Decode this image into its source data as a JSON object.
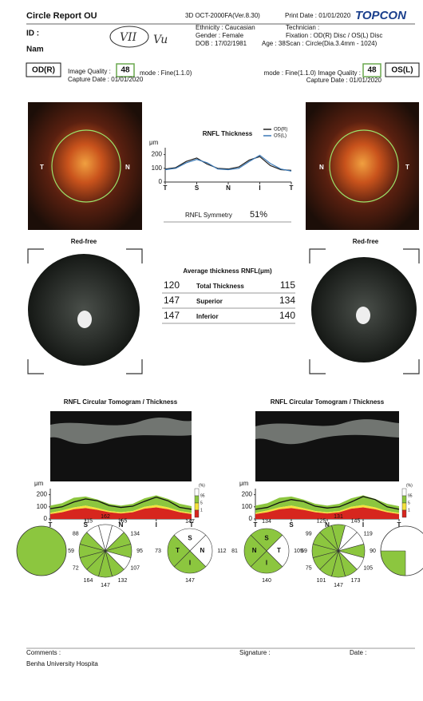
{
  "header": {
    "title": "Circle Report OU",
    "device": "3D OCT-2000FA(Ver.8.30)",
    "print_date": "Print Date : 01/01/2020",
    "brand": "TOPCON",
    "id": "ID :",
    "name": "Nam",
    "handwriting": [
      "VII",
      "Vu"
    ],
    "ethnicity": "Ethnicity : Caucasian",
    "gender": "Gender : Female",
    "dob": "DOB : 17/02/1981",
    "age": "Age : 38",
    "technician": "Technician :",
    "fixation": "Fixation : OD(R) Disc / OS(L) Disc",
    "scan": "Scan : Circle(Dia.3.4mm - 1024)"
  },
  "eyes": [
    {
      "label": "OD(R)",
      "image_quality_label": "Image Quality :",
      "image_quality": 48,
      "mode": "mode : Fine(1.1.0)",
      "capture_date": "Capture Date : 01/01/2020",
      "fundus_labels": [
        "T",
        "N"
      ],
      "red_free": "Red-free",
      "clock": [
        {
          "value": 162,
          "color": "#ffffff"
        },
        {
          "value": 165,
          "color": "#ffffff"
        },
        {
          "value": 134,
          "color": "#8cc63f"
        },
        {
          "value": 95,
          "color": "#8cc63f"
        },
        {
          "value": 107,
          "color": "#ffffff"
        },
        {
          "value": 132,
          "color": "#8cc63f"
        },
        {
          "value": 147,
          "color": "#8cc63f"
        },
        {
          "value": 164,
          "color": "#8cc63f"
        },
        {
          "value": 72,
          "color": "#8cc63f"
        },
        {
          "value": 59,
          "color": "#8cc63f"
        },
        {
          "value": 88,
          "color": "#8cc63f"
        },
        {
          "value": 115,
          "color": "#ffffff"
        }
      ],
      "quadrants": [
        {
          "label": "S",
          "value": 147,
          "color": "#ffffff"
        },
        {
          "label": "N",
          "value": 112,
          "color": "#ffffff"
        },
        {
          "label": "I",
          "value": 147,
          "color": "#8cc63f"
        },
        {
          "label": "T",
          "value": 73,
          "color": "#8cc63f"
        }
      ]
    },
    {
      "label": "OS(L)",
      "image_quality_label": "mode : Fine(1.1.0) Image Quality :",
      "image_quality": 48,
      "capture_date": "Capture Date : 01/01/2020",
      "fundus_labels": [
        "N",
        "T"
      ],
      "red_free": "Red-free",
      "clock": [
        {
          "value": 131,
          "color": "#8cc63f"
        },
        {
          "value": 145,
          "color": "#ffffff"
        },
        {
          "value": 119,
          "color": "#ffffff"
        },
        {
          "value": 90,
          "color": "#8cc63f"
        },
        {
          "value": 105,
          "color": "#ffffff"
        },
        {
          "value": 173,
          "color": "#8cc63f"
        },
        {
          "value": 147,
          "color": "#8cc63f"
        },
        {
          "value": 101,
          "color": "#8cc63f"
        },
        {
          "value": 75,
          "color": "#8cc63f"
        },
        {
          "value": 69,
          "color": "#8cc63f"
        },
        {
          "value": 99,
          "color": "#8cc63f"
        },
        {
          "value": 125,
          "color": "#8cc63f"
        }
      ],
      "quadrants": [
        {
          "label": "S",
          "value": 134,
          "color": "#8cc63f"
        },
        {
          "label": "T",
          "value": 105,
          "color": "#ffffff"
        },
        {
          "label": "I",
          "value": 140,
          "color": "#8cc63f"
        },
        {
          "label": "N",
          "value": 81,
          "color": "#8cc63f"
        }
      ]
    }
  ],
  "rnfl_thickness": {
    "title": "RNFL Thickness",
    "unit": "μm",
    "ylim": [
      0,
      250
    ],
    "yticks": [
      0,
      100,
      200
    ],
    "x_labels": [
      "T",
      "S",
      "N",
      "I",
      "T"
    ],
    "series": [
      {
        "name": "OD(R)",
        "color": "#222222",
        "values": [
          95,
          105,
          150,
          175,
          130,
          100,
          95,
          110,
          160,
          185,
          120,
          90,
          85
        ]
      },
      {
        "name": "OS(L)",
        "color": "#3a78b5",
        "values": [
          90,
          100,
          140,
          165,
          140,
          95,
          90,
          100,
          150,
          195,
          135,
          95,
          80
        ]
      }
    ]
  },
  "symmetry": {
    "label": "RNFL Symmetry",
    "value": "51%"
  },
  "average": {
    "title": "Average thickness RNFL(μm)",
    "rows": [
      [
        120,
        "Total Thickness",
        115
      ],
      [
        147,
        "Superior",
        134
      ],
      [
        147,
        "Inferior",
        140
      ]
    ]
  },
  "tomograms": {
    "unit": "μm",
    "ylim": [
      0,
      250
    ],
    "yticks": [
      0,
      100,
      200
    ],
    "x_labels": [
      "T",
      "S",
      "N",
      "I",
      "T"
    ],
    "legend": [
      "(%)",
      "95",
      "5",
      "1"
    ],
    "p95": [
      110,
      130,
      175,
      185,
      160,
      125,
      110,
      125,
      170,
      195,
      165,
      125,
      105
    ],
    "p5": [
      50,
      70,
      95,
      110,
      90,
      65,
      55,
      65,
      100,
      115,
      95,
      65,
      50
    ],
    "p1": [
      40,
      55,
      80,
      90,
      75,
      55,
      45,
      55,
      85,
      95,
      80,
      55,
      40
    ],
    "charts": [
      {
        "title": "RNFL Circular Tomogram / Thickness",
        "thickness": [
          85,
          100,
          140,
          165,
          150,
          110,
          95,
          105,
          145,
          180,
          150,
          95,
          80
        ]
      },
      {
        "title": "RNFL Circular Tomogram / Thickness",
        "thickness": [
          80,
          95,
          135,
          160,
          145,
          105,
          90,
          100,
          140,
          185,
          160,
          100,
          80
        ]
      }
    ]
  },
  "footer": {
    "comments": "Comments :",
    "signature": "Signature :",
    "date": "Date :",
    "institution": "Benha University Hospita"
  }
}
